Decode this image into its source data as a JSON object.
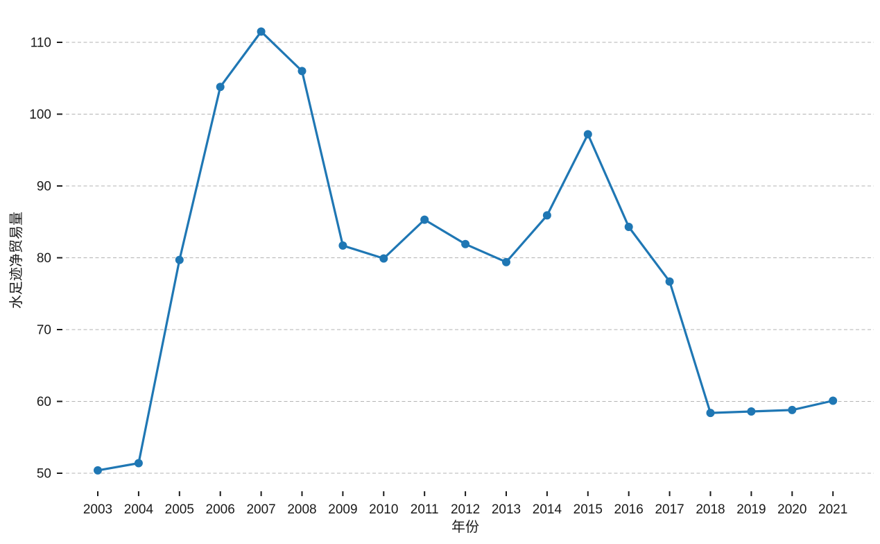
{
  "page": {
    "background": "#ffffff"
  },
  "chart_data": {
    "type": "line",
    "title": "",
    "xlabel": "年份",
    "ylabel": "水足迹净贸易量",
    "x": [
      2003,
      2004,
      2005,
      2006,
      2007,
      2008,
      2009,
      2010,
      2011,
      2012,
      2013,
      2014,
      2015,
      2016,
      2017,
      2018,
      2019,
      2020,
      2021
    ],
    "series": [
      {
        "name": "水足迹净贸易量",
        "values": [
          50.4,
          51.4,
          79.7,
          103.8,
          111.5,
          106.0,
          81.7,
          79.9,
          85.3,
          81.9,
          79.4,
          85.9,
          97.2,
          84.3,
          76.7,
          58.4,
          58.6,
          58.8,
          60.1
        ]
      }
    ],
    "yticks": [
      50,
      60,
      70,
      80,
      90,
      100,
      110
    ],
    "ylim": [
      47,
      113.5
    ],
    "xlim": [
      2002.2,
      2021.9
    ],
    "grid": "horizontal-dashed",
    "legend": "none",
    "line_color": "#1f77b4",
    "marker": "circle",
    "marker_color": "#1f77b4",
    "grid_color": "#b3b3b3",
    "tick_color": "#1a1a1a",
    "text_color": "#1a1a1a"
  }
}
